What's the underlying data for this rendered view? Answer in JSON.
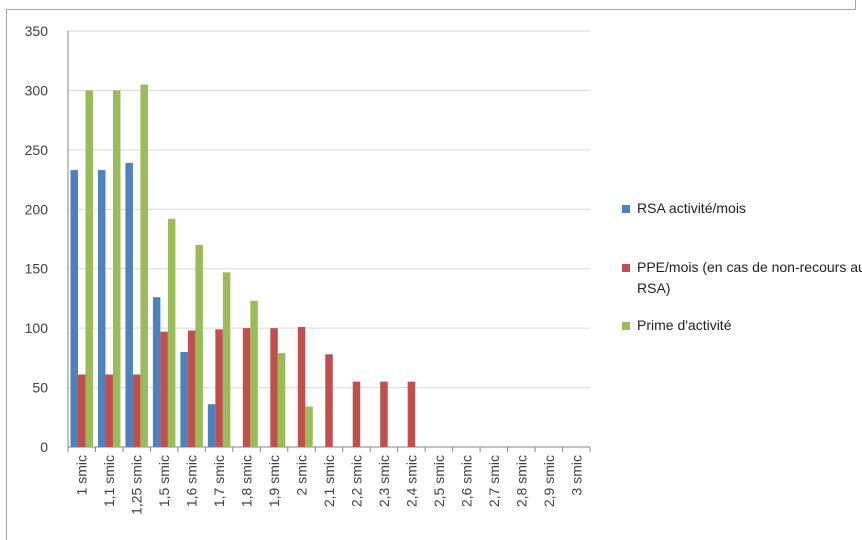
{
  "chart_data": {
    "type": "bar",
    "categories": [
      "1 smic",
      "1,1 smic",
      "1,25 smic",
      "1,5 smic",
      "1,6 smic",
      "1,7 smic",
      "1,8 smic",
      "1,9 smic",
      "2 smic",
      "2,1 smic",
      "2,2 smic",
      "2,3 smic",
      "2,4 smic",
      "2,5 smic",
      "2,6 smic",
      "2,7 smic",
      "2,8 smic",
      "2,9 smic",
      "3 smic"
    ],
    "series": [
      {
        "name": "RSA activité/mois",
        "color": "#4f81bd",
        "values": [
          233,
          233,
          239,
          126,
          80,
          36,
          0,
          0,
          0,
          0,
          0,
          0,
          0,
          0,
          0,
          0,
          0,
          0,
          0
        ]
      },
      {
        "name": "PPE/mois (en cas de non-recours au RSA)",
        "color": "#c0504d",
        "values": [
          61,
          61,
          61,
          97,
          98,
          99,
          100,
          100,
          101,
          78,
          55,
          55,
          55,
          0,
          0,
          0,
          0,
          0,
          0
        ]
      },
      {
        "name": "Prime d'activité",
        "color": "#9bbb59",
        "values": [
          300,
          300,
          305,
          192,
          170,
          147,
          123,
          79,
          34,
          0,
          0,
          0,
          0,
          0,
          0,
          0,
          0,
          0,
          0
        ]
      }
    ],
    "y_ticks": [
      "0",
      "50",
      "100",
      "150",
      "200",
      "250",
      "300",
      "350"
    ],
    "ylim": [
      0,
      350
    ],
    "grid": true,
    "legend_position": "right",
    "title": "",
    "xlabel": "",
    "ylabel": ""
  }
}
